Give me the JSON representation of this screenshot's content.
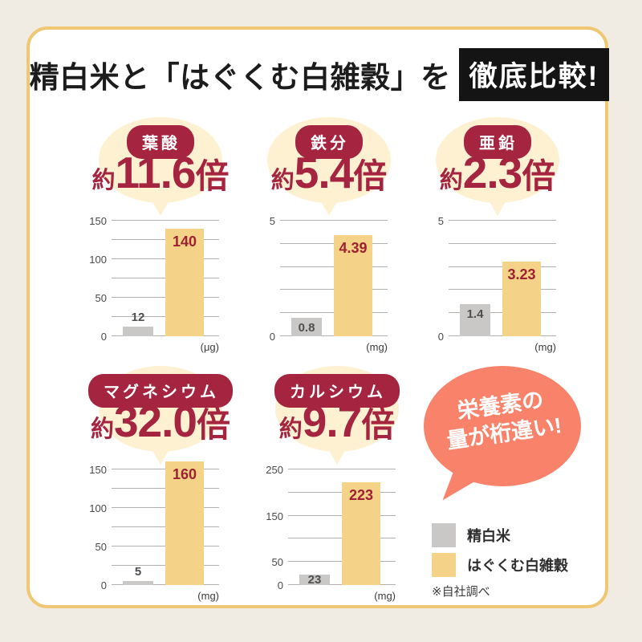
{
  "title": {
    "plain": "精白米と「はぐくむ白雑穀」を",
    "boxed": "徹底比較!"
  },
  "colors": {
    "accent_red": "#a5243f",
    "bar_yellow": "#f4d287",
    "bar_gray": "#c9c8c6",
    "bubble_cream": "#fdf1d2",
    "speech_pink": "#f8836a",
    "card_border": "#f0c873",
    "outer_background": "#f0ece4",
    "gridline": "#b5b2ae",
    "title_box_bg": "#141414"
  },
  "speech_bubble": {
    "line1": "栄養素の",
    "line2": "量が桁違い!"
  },
  "legend": {
    "items": [
      {
        "label": "精白米",
        "swatch": "gray"
      },
      {
        "label": "はぐくむ白雑穀",
        "swatch": "yellow"
      }
    ],
    "note": "※自社調べ"
  },
  "chart_data": [
    {
      "type": "bar",
      "nutrient": "葉酸",
      "multiplier": {
        "prefix": "約",
        "value": "11.6",
        "suffix": "倍"
      },
      "unit": "(μg)",
      "categories": [
        "精白米",
        "はぐくむ白雑穀"
      ],
      "values": [
        12,
        140
      ],
      "value_labels": [
        "12",
        "140"
      ],
      "ymax": 150,
      "gridline_step": 25,
      "ticks": [
        {
          "v": 0,
          "label": "0"
        },
        {
          "v": 50,
          "label": "50"
        },
        {
          "v": 100,
          "label": "100"
        },
        {
          "v": 150,
          "label": "150"
        }
      ],
      "gray_label_position": "above"
    },
    {
      "type": "bar",
      "nutrient": "鉄分",
      "multiplier": {
        "prefix": "約",
        "value": "5.4",
        "suffix": "倍"
      },
      "unit": "(mg)",
      "categories": [
        "精白米",
        "はぐくむ白雑穀"
      ],
      "values": [
        0.8,
        4.39
      ],
      "value_labels": [
        "0.8",
        "4.39"
      ],
      "ymax": 5,
      "gridline_step": 1,
      "ticks": [
        {
          "v": 0,
          "label": "0"
        },
        {
          "v": 5,
          "label": "5"
        }
      ],
      "gray_label_position": "inside"
    },
    {
      "type": "bar",
      "nutrient": "亜鉛",
      "multiplier": {
        "prefix": "約",
        "value": "2.3",
        "suffix": "倍"
      },
      "unit": "(mg)",
      "categories": [
        "精白米",
        "はぐくむ白雑穀"
      ],
      "values": [
        1.4,
        3.23
      ],
      "value_labels": [
        "1.4",
        "3.23"
      ],
      "ymax": 5,
      "gridline_step": 1,
      "ticks": [
        {
          "v": 0,
          "label": "0"
        },
        {
          "v": 5,
          "label": "5"
        }
      ],
      "gray_label_position": "inside"
    },
    {
      "type": "bar",
      "nutrient": "マグネシウム",
      "multiplier": {
        "prefix": "約",
        "value": "32.0",
        "suffix": "倍"
      },
      "unit": "(mg)",
      "categories": [
        "精白米",
        "はぐくむ白雑穀"
      ],
      "values": [
        5,
        160
      ],
      "value_labels": [
        "5",
        "160"
      ],
      "ymax": 150,
      "gridline_step": 25,
      "ticks": [
        {
          "v": 0,
          "label": "0"
        },
        {
          "v": 50,
          "label": "50"
        },
        {
          "v": 100,
          "label": "100"
        },
        {
          "v": 150,
          "label": "150"
        }
      ],
      "gray_label_position": "above"
    },
    {
      "type": "bar",
      "nutrient": "カルシウム",
      "multiplier": {
        "prefix": "約",
        "value": "9.7",
        "suffix": "倍"
      },
      "unit": "(mg)",
      "categories": [
        "精白米",
        "はぐくむ白雑穀"
      ],
      "values": [
        23,
        223
      ],
      "value_labels": [
        "23",
        "223"
      ],
      "ymax": 250,
      "gridline_step": 50,
      "ticks": [
        {
          "v": 0,
          "label": "0"
        },
        {
          "v": 50,
          "label": "50"
        },
        {
          "v": 150,
          "label": "150"
        },
        {
          "v": 250,
          "label": "250"
        }
      ],
      "gray_label_position": "inside"
    }
  ]
}
